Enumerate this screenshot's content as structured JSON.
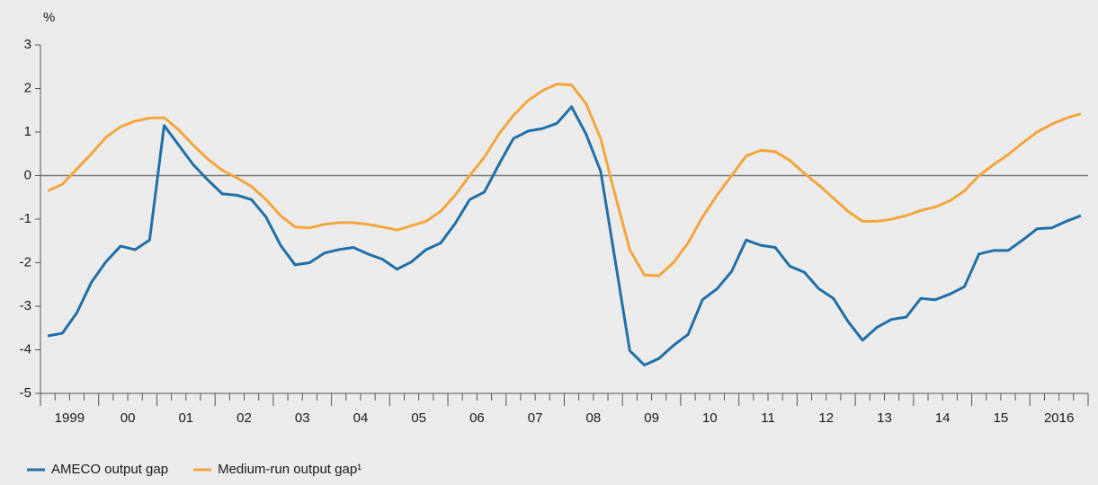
{
  "chart_data": {
    "type": "line",
    "y_label": "%",
    "categories": [
      "1999",
      null,
      null,
      null,
      "00",
      null,
      null,
      null,
      "01",
      null,
      null,
      null,
      "02",
      null,
      null,
      null,
      "03",
      null,
      null,
      null,
      "04",
      null,
      null,
      null,
      "05",
      null,
      null,
      null,
      "06",
      null,
      null,
      null,
      "07",
      null,
      null,
      null,
      "08",
      null,
      null,
      null,
      "09",
      null,
      null,
      null,
      "10",
      null,
      null,
      null,
      "11",
      null,
      null,
      null,
      "12",
      null,
      null,
      null,
      "13",
      null,
      null,
      null,
      "14",
      null,
      null,
      null,
      "15",
      null,
      null,
      null,
      "2016",
      null,
      null,
      null
    ],
    "series": [
      {
        "name": "AMECO output gap",
        "color": "#1f6fa8",
        "values": [
          -3.68,
          -3.62,
          -3.15,
          -2.45,
          -1.98,
          -1.62,
          -1.7,
          -1.48,
          1.15,
          0.7,
          0.25,
          -0.1,
          -0.42,
          -0.45,
          -0.55,
          -0.95,
          -1.6,
          -2.05,
          -2.0,
          -1.78,
          -1.7,
          -1.65,
          -1.8,
          -1.92,
          -2.15,
          -1.98,
          -1.7,
          -1.55,
          -1.1,
          -0.55,
          -0.38,
          0.25,
          0.85,
          1.02,
          1.08,
          1.2,
          1.58,
          0.95,
          0.1,
          -1.95,
          -4.02,
          -4.35,
          -4.2,
          -3.9,
          -3.65,
          -2.85,
          -2.6,
          -2.2,
          -1.48,
          -1.6,
          -1.65,
          -2.08,
          -2.22,
          -2.6,
          -2.82,
          -3.35,
          -3.78,
          -3.48,
          -3.3,
          -3.25,
          -2.82,
          -2.85,
          -2.72,
          -2.55,
          -1.8,
          -1.72,
          -1.72,
          -1.48,
          -1.22,
          -1.2,
          -1.05,
          -0.92
        ]
      },
      {
        "name": "Medium-run output gap¹",
        "color": "#f5a53c",
        "values": [
          -0.35,
          -0.2,
          0.15,
          0.5,
          0.88,
          1.12,
          1.25,
          1.32,
          1.33,
          1.05,
          0.7,
          0.38,
          0.12,
          -0.05,
          -0.25,
          -0.55,
          -0.92,
          -1.18,
          -1.2,
          -1.12,
          -1.08,
          -1.08,
          -1.12,
          -1.18,
          -1.25,
          -1.15,
          -1.05,
          -0.82,
          -0.45,
          0.0,
          0.42,
          0.95,
          1.38,
          1.72,
          1.95,
          2.1,
          2.08,
          1.65,
          0.85,
          -0.45,
          -1.7,
          -2.28,
          -2.3,
          -2.0,
          -1.55,
          -0.95,
          -0.45,
          0.0,
          0.45,
          0.58,
          0.55,
          0.35,
          0.05,
          -0.22,
          -0.52,
          -0.82,
          -1.05,
          -1.05,
          -1.0,
          -0.92,
          -0.8,
          -0.72,
          -0.58,
          -0.35,
          0.0,
          0.25,
          0.48,
          0.75,
          1.0,
          1.18,
          1.32,
          1.42
        ]
      }
    ],
    "ylim": [
      -5,
      3
    ],
    "yticks": [
      -5,
      -4,
      -3,
      -2,
      -1,
      0,
      1,
      2,
      3
    ],
    "zero_line": true,
    "legend": "bottom-left"
  }
}
